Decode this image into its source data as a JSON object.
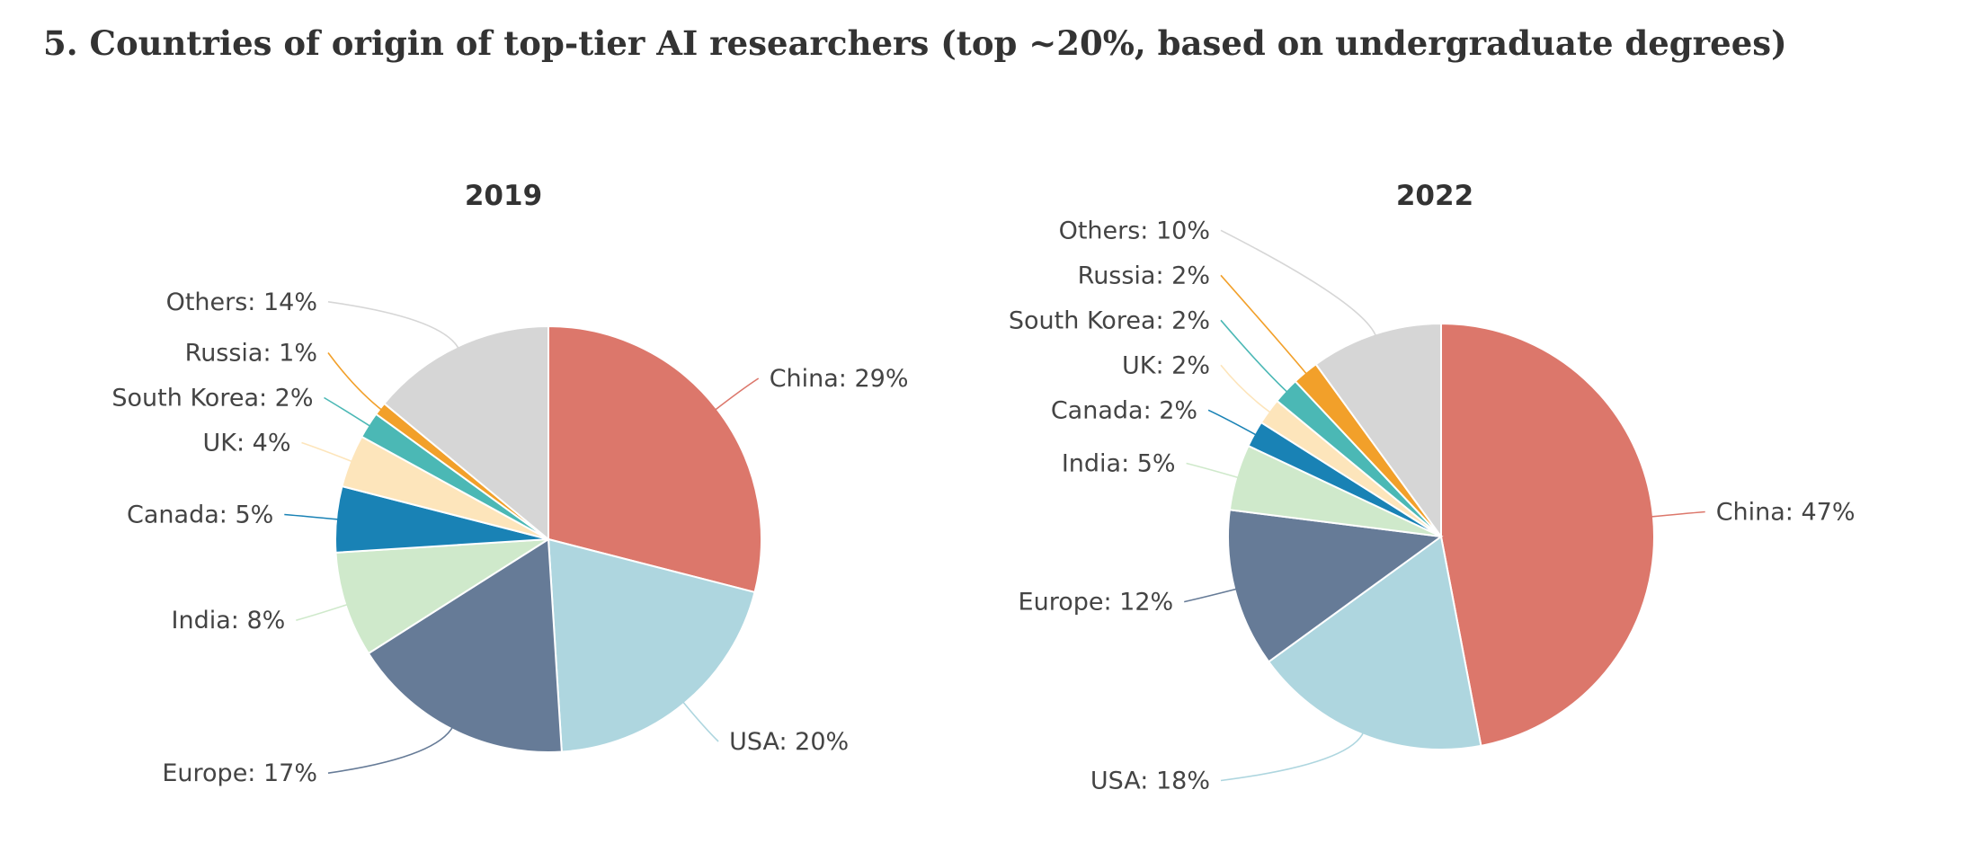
{
  "page": {
    "title": "5. Countries of origin of top-tier AI researchers (top ~20%, based on undergraduate degrees)"
  },
  "chart_data": [
    {
      "type": "pie",
      "title": "2019",
      "slices": [
        {
          "label": "China",
          "value": 29,
          "display": "China: 29%",
          "color": "#dc776b"
        },
        {
          "label": "USA",
          "value": 20,
          "display": "USA: 20%",
          "color": "#aed6df"
        },
        {
          "label": "Europe",
          "value": 17,
          "display": "Europe: 17%",
          "color": "#667b97"
        },
        {
          "label": "India",
          "value": 8,
          "display": "India: 8%",
          "color": "#cfe9cb"
        },
        {
          "label": "Canada",
          "value": 5,
          "display": "Canada: 5%",
          "color": "#1982b5"
        },
        {
          "label": "UK",
          "value": 4,
          "display": "UK: 4%",
          "color": "#fde5bb"
        },
        {
          "label": "South Korea",
          "value": 2,
          "display": "South Korea: 2%",
          "color": "#4bb8b5"
        },
        {
          "label": "Russia",
          "value": 1,
          "display": "Russia: 1%",
          "color": "#f2a02a"
        },
        {
          "label": "Others",
          "value": 14,
          "display": "Others: 14%",
          "color": "#d6d6d6"
        }
      ]
    },
    {
      "type": "pie",
      "title": "2022",
      "slices": [
        {
          "label": "China",
          "value": 47,
          "display": "China: 47%",
          "color": "#dc776b"
        },
        {
          "label": "USA",
          "value": 18,
          "display": "USA: 18%",
          "color": "#aed6df"
        },
        {
          "label": "Europe",
          "value": 12,
          "display": "Europe: 12%",
          "color": "#667b97"
        },
        {
          "label": "India",
          "value": 5,
          "display": "India: 5%",
          "color": "#cfe9cb"
        },
        {
          "label": "Canada",
          "value": 2,
          "display": "Canada: 2%",
          "color": "#1982b5"
        },
        {
          "label": "UK",
          "value": 2,
          "display": "UK: 2%",
          "color": "#fde5bb"
        },
        {
          "label": "South Korea",
          "value": 2,
          "display": "South Korea: 2%",
          "color": "#4bb8b5"
        },
        {
          "label": "Russia",
          "value": 2,
          "display": "Russia: 2%",
          "color": "#f2a02a"
        },
        {
          "label": "Others",
          "value": 10,
          "display": "Others: 10%",
          "color": "#d6d6d6"
        }
      ]
    }
  ]
}
